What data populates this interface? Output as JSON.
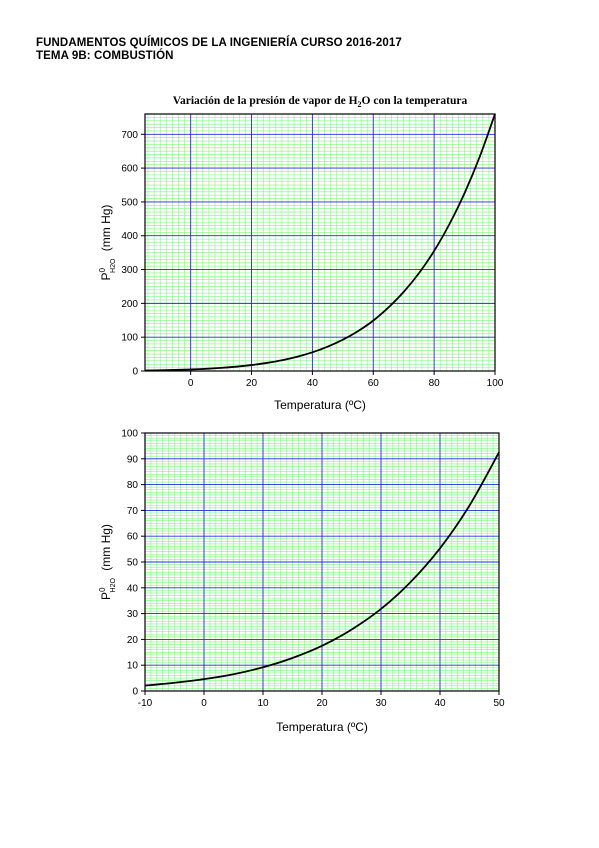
{
  "header": {
    "line1": "FUNDAMENTOS QUÍMICOS DE LA INGENIERÍA   CURSO 2016-2017",
    "line2": "TEMA 9B: COMBUSTIÓN"
  },
  "colors": {
    "minor_grid": "#7CFC7C",
    "major_grid": "#2A2AE8",
    "curve": "#000000",
    "frame": "#000000"
  },
  "chart_data": [
    {
      "type": "line",
      "title_pre": "Variación de la presión de vapor de H",
      "title_sub": "2",
      "title_post": "O con la temperatura",
      "xlabel": "Temperatura (ºC)",
      "ylabel_main": "P",
      "ylabel_sup": "0",
      "ylabel_sub": "H2O",
      "ylabel_unit": "(mm Hg)",
      "xlim": [
        -15,
        100
      ],
      "ylim": [
        0,
        760
      ],
      "xticks": [
        0,
        20,
        40,
        60,
        80,
        100
      ],
      "yticks": [
        0,
        100,
        200,
        300,
        400,
        500,
        600,
        700
      ],
      "xtick_labels": [
        "0",
        "20",
        "40",
        "60",
        "80",
        "100"
      ],
      "ytick_labels": [
        "0",
        "100",
        "200",
        "300",
        "400",
        "500",
        "600",
        "700"
      ],
      "major_x_step": 20,
      "minor_x_step": 2,
      "major_y_step": 100,
      "minor_y_step": 10,
      "grid": true,
      "series": [
        {
          "x": [
            -15,
            -10,
            -5,
            0,
            5,
            10,
            15,
            20,
            25,
            30,
            35,
            40,
            45,
            50,
            55,
            60,
            65,
            70,
            75,
            80,
            85,
            90,
            95,
            100
          ],
          "y": [
            1.4,
            2.1,
            3.2,
            4.6,
            6.5,
            9.2,
            12.8,
            17.5,
            23.8,
            31.8,
            42.2,
            55.3,
            71.9,
            92.5,
            118,
            149,
            188,
            234,
            289,
            355,
            434,
            526,
            634,
            760
          ]
        }
      ]
    },
    {
      "type": "line",
      "xlabel": "Temperatura (ºC)",
      "ylabel_main": "P",
      "ylabel_sup": "0",
      "ylabel_sub": "H2O",
      "ylabel_unit": "(mm Hg)",
      "xlim": [
        -10,
        50
      ],
      "ylim": [
        0,
        100
      ],
      "xticks": [
        -10,
        0,
        10,
        20,
        30,
        40,
        50
      ],
      "yticks": [
        0,
        10,
        20,
        30,
        40,
        50,
        60,
        70,
        80,
        90,
        100
      ],
      "xtick_labels": [
        "-10",
        "0",
        "10",
        "20",
        "30",
        "40",
        "50"
      ],
      "ytick_labels": [
        "0",
        "10",
        "20",
        "30",
        "40",
        "50",
        "60",
        "70",
        "80",
        "90",
        "100"
      ],
      "major_x_step": 10,
      "minor_x_step": 1,
      "major_y_step": 10,
      "minor_y_step": 1,
      "grid": true,
      "series": [
        {
          "x": [
            -10,
            -5,
            0,
            5,
            10,
            15,
            20,
            25,
            30,
            35,
            40,
            45,
            50
          ],
          "y": [
            2.1,
            3.2,
            4.6,
            6.5,
            9.2,
            12.8,
            17.5,
            23.8,
            31.8,
            42.2,
            55.3,
            71.9,
            92.5
          ]
        }
      ]
    }
  ]
}
